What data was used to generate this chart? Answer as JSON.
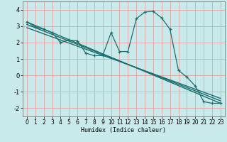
{
  "background_color": "#c8eaea",
  "grid_color": "#e8a0a0",
  "line_color": "#1a6e6e",
  "xlabel": "Humidex (Indice chaleur)",
  "ylim": [
    -2.5,
    4.5
  ],
  "xlim": [
    -0.5,
    23.5
  ],
  "yticks": [
    -2,
    -1,
    0,
    1,
    2,
    3,
    4
  ],
  "xticks": [
    0,
    1,
    2,
    3,
    4,
    5,
    6,
    7,
    8,
    9,
    10,
    11,
    12,
    13,
    14,
    15,
    16,
    17,
    18,
    19,
    20,
    21,
    22,
    23
  ],
  "curve_main_x": [
    0,
    1,
    2,
    3,
    4,
    5,
    6,
    7,
    8,
    9,
    10,
    11,
    12,
    13,
    14,
    15,
    16,
    17,
    18,
    19,
    20,
    21,
    22,
    23
  ],
  "curve_main_y": [
    3.25,
    2.95,
    2.8,
    2.6,
    2.0,
    2.15,
    2.1,
    1.35,
    1.2,
    1.2,
    2.6,
    1.45,
    1.45,
    3.45,
    3.85,
    3.9,
    3.5,
    2.8,
    0.3,
    -0.1,
    -0.65,
    -1.6,
    -1.7,
    -1.7
  ],
  "line1_x": [
    0,
    23
  ],
  "line1_y": [
    3.25,
    -1.7
  ],
  "line2_x": [
    0,
    23
  ],
  "line2_y": [
    3.1,
    -1.55
  ],
  "line3_x": [
    0,
    23
  ],
  "line3_y": [
    2.9,
    -1.4
  ]
}
